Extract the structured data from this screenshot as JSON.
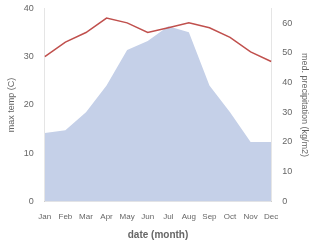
{
  "chart_data": {
    "type": "line",
    "categories": [
      "Jan",
      "Feb",
      "Mar",
      "Apr",
      "May",
      "Jun",
      "Jul",
      "Aug",
      "Sep",
      "Oct",
      "Nov",
      "Dec"
    ],
    "xlabel": "date (month)",
    "ylabel": "max temp (C)",
    "y2label": "med. precipitation (kg/m2)",
    "series": [
      {
        "type": "area",
        "color": "#c5d0e8",
        "axis": "y2",
        "values": [
          23,
          24,
          30,
          39,
          51,
          54,
          59,
          57,
          39,
          30,
          20,
          20
        ]
      },
      {
        "type": "line",
        "color": "#c0504d",
        "values": [
          30,
          33,
          35,
          38,
          37,
          35,
          36,
          37,
          36,
          34,
          31,
          29
        ]
      }
    ],
    "ylim": [
      0,
      40
    ],
    "yticks": [
      0,
      10,
      20,
      30,
      40
    ],
    "y2lim": [
      0,
      65
    ],
    "y2ticks": [
      0,
      10,
      20,
      30,
      40,
      50,
      60
    ],
    "grid": false
  }
}
